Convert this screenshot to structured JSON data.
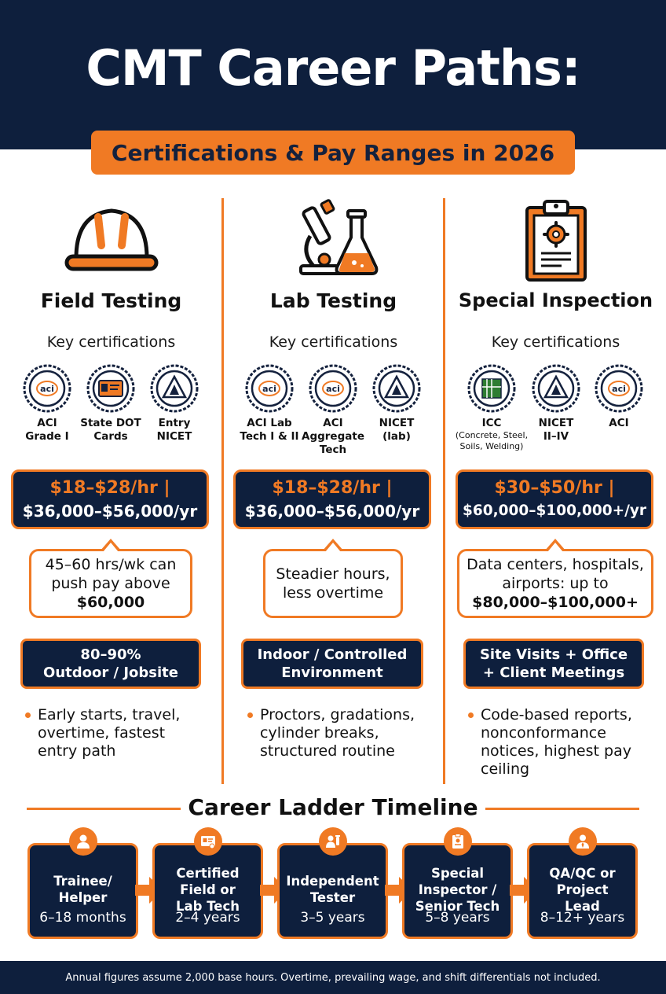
{
  "header": {
    "title": "CMT Career Paths:",
    "subtitle": "Certifications & Pay Ranges in 2026"
  },
  "colors": {
    "navy": "#0e1f3d",
    "orange": "#f07a24"
  },
  "columns": [
    {
      "title": "Field Testing",
      "icon": "hard-hat-icon",
      "key_label": "Key certifications",
      "certs": [
        {
          "icon": "aci-seal-icon",
          "seal_text": "aci",
          "line1": "ACI",
          "line2": "Grade I",
          "note": ""
        },
        {
          "icon": "id-card-seal-icon",
          "seal_text": "",
          "line1": "State DOT",
          "line2": "Cards",
          "note": ""
        },
        {
          "icon": "nicet-seal-icon",
          "seal_text": "",
          "line1": "Entry",
          "line2": "NICET",
          "note": ""
        }
      ],
      "pay_hourly": "$18–$28/hr |",
      "pay_annual": "$36,000–$56,000/yr",
      "callout_line1": "45–60 hrs/wk can",
      "callout_line2": "push pay above",
      "callout_bold": "$60,000",
      "env_line1": "80–90%",
      "env_line2": "Outdoor / Jobsite",
      "bullet_lines": [
        "Early starts, travel,",
        "overtime, fastest",
        "entry path"
      ]
    },
    {
      "title": "Lab Testing",
      "icon": "microscope-flask-icon",
      "key_label": "Key certifications",
      "certs": [
        {
          "icon": "aci-seal-icon",
          "seal_text": "aci",
          "line1": "ACI Lab",
          "line2": "Tech I & II",
          "note": ""
        },
        {
          "icon": "aci-seal-icon",
          "seal_text": "aci",
          "line1": "ACI",
          "line2": "Aggregate",
          "line3": "Tech",
          "note": ""
        },
        {
          "icon": "nicet-seal-icon",
          "seal_text": "",
          "line1": "NICET",
          "line2": "(lab)",
          "note": ""
        }
      ],
      "pay_hourly": "$18–$28/hr |",
      "pay_annual": "$36,000–$56,000/yr",
      "callout_line1": "Steadier hours,",
      "callout_line2": "less overtime",
      "callout_bold": "",
      "env_line1": "Indoor / Controlled",
      "env_line2": "Environment",
      "bullet_lines": [
        "Proctors, gradations,",
        "cylinder breaks,",
        "structured routine"
      ]
    },
    {
      "title": "Special Inspection",
      "icon": "clipboard-gear-icon",
      "key_label": "Key certifications",
      "certs": [
        {
          "icon": "icc-seal-icon",
          "seal_text": "",
          "line1": "ICC",
          "line2": "",
          "note": "(Concrete, Steel, Soils, Welding)"
        },
        {
          "icon": "nicet-seal-icon",
          "seal_text": "",
          "line1": "NICET",
          "line2": "II–IV",
          "note": ""
        },
        {
          "icon": "aci-seal-icon",
          "seal_text": "aci",
          "line1": "ACI",
          "line2": "",
          "note": ""
        }
      ],
      "pay_hourly": "$30–$50/hr |",
      "pay_annual": "$60,000–$100,000+/yr",
      "callout_line1": "Data centers, hospitals,",
      "callout_line2": "airports: up to",
      "callout_bold": "$80,000–$100,000+",
      "env_line1": "Site Visits + Office",
      "env_line2": "+ Client Meetings",
      "bullet_lines": [
        "Code-based reports,",
        "nonconformance",
        "notices, highest pay",
        "ceiling"
      ]
    }
  ],
  "ladder": {
    "title": "Career Ladder Timeline",
    "steps": [
      {
        "icon": "person-icon",
        "line1": "Trainee/",
        "line2": "Helper",
        "line3": "",
        "time": "6–18 months"
      },
      {
        "icon": "certificate-icon",
        "line1": "Certified",
        "line2": "Field or",
        "line3": "Lab Tech",
        "time": "2–4 years"
      },
      {
        "icon": "tester-icon",
        "line1": "Independent",
        "line2": "Tester",
        "line3": "",
        "time": "3–5 years"
      },
      {
        "icon": "clipboard-icon",
        "line1": "Special",
        "line2": "Inspector /",
        "line3": "Senior Tech",
        "time": "5–8 years"
      },
      {
        "icon": "manager-icon",
        "line1": "QA/QC or",
        "line2": "Project",
        "line3": "Lead",
        "time": "8–12+ years"
      }
    ]
  },
  "footer": {
    "note": "Annual figures assume 2,000 base hours. Overtime, prevailing wage, and shift differentials not included."
  }
}
